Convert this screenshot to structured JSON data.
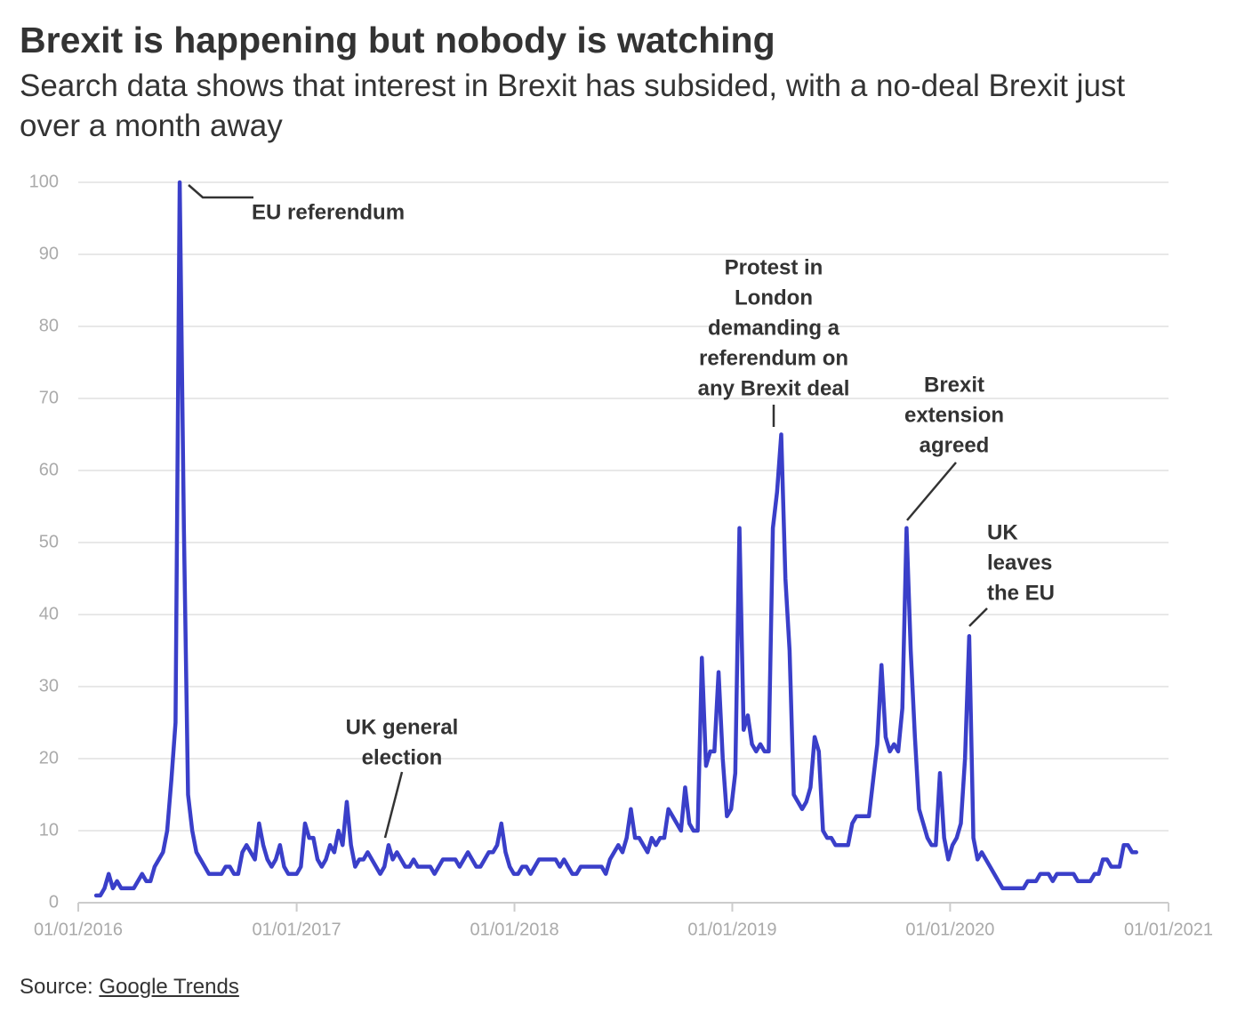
{
  "chart_data": {
    "type": "line",
    "title": "Brexit is happening but nobody is watching",
    "subtitle": "Search data shows that interest in Brexit has subsided, with a no-deal Brexit just over a month away",
    "source": {
      "label": "Source:",
      "link": "Google Trends"
    },
    "color": "#3a3fc9",
    "grid": true,
    "xlim": [
      "2016-01-01",
      "2021-01-01"
    ],
    "xticks": [
      {
        "value": "2016-01-01",
        "label": "01/01/2016"
      },
      {
        "value": "2017-01-01",
        "label": "01/01/2017"
      },
      {
        "value": "2018-01-01",
        "label": "01/01/2018"
      },
      {
        "value": "2019-01-01",
        "label": "01/01/2019"
      },
      {
        "value": "2020-01-01",
        "label": "01/01/2020"
      },
      {
        "value": "2021-01-01",
        "label": "01/01/2021"
      }
    ],
    "ylim": [
      0,
      100
    ],
    "yticks": [
      0,
      10,
      20,
      30,
      40,
      50,
      60,
      70,
      80,
      90,
      100
    ],
    "annotations": [
      {
        "lines": [
          "EU referendum"
        ]
      },
      {
        "lines": [
          "UK general",
          "election"
        ]
      },
      {
        "lines": [
          "Protest in",
          "London",
          "demanding a",
          "referendum on",
          "any Brexit deal"
        ]
      },
      {
        "lines": [
          "Brexit",
          "extension",
          "agreed"
        ]
      },
      {
        "lines": [
          "UK",
          "leaves",
          "the EU"
        ]
      }
    ],
    "x": [
      "2016-01-31",
      "2016-02-07",
      "2016-02-14",
      "2016-02-21",
      "2016-02-28",
      "2016-03-06",
      "2016-03-13",
      "2016-03-20",
      "2016-03-27",
      "2016-04-03",
      "2016-04-10",
      "2016-04-17",
      "2016-04-24",
      "2016-05-01",
      "2016-05-08",
      "2016-05-15",
      "2016-05-22",
      "2016-05-29",
      "2016-06-05",
      "2016-06-12",
      "2016-06-19",
      "2016-06-26",
      "2016-07-03",
      "2016-07-10",
      "2016-07-17",
      "2016-07-24",
      "2016-07-31",
      "2016-08-07",
      "2016-08-14",
      "2016-08-21",
      "2016-08-28",
      "2016-09-04",
      "2016-09-11",
      "2016-09-18",
      "2016-09-25",
      "2016-10-02",
      "2016-10-09",
      "2016-10-16",
      "2016-10-23",
      "2016-10-30",
      "2016-11-06",
      "2016-11-13",
      "2016-11-20",
      "2016-11-27",
      "2016-12-04",
      "2016-12-11",
      "2016-12-18",
      "2016-12-25",
      "2017-01-01",
      "2017-01-08",
      "2017-01-15",
      "2017-01-22",
      "2017-01-29",
      "2017-02-05",
      "2017-02-12",
      "2017-02-19",
      "2017-02-26",
      "2017-03-05",
      "2017-03-12",
      "2017-03-19",
      "2017-03-26",
      "2017-04-02",
      "2017-04-09",
      "2017-04-16",
      "2017-04-23",
      "2017-04-30",
      "2017-05-07",
      "2017-05-14",
      "2017-05-21",
      "2017-05-28",
      "2017-06-04",
      "2017-06-11",
      "2017-06-18",
      "2017-06-25",
      "2017-07-02",
      "2017-07-09",
      "2017-07-16",
      "2017-07-23",
      "2017-07-30",
      "2017-08-06",
      "2017-08-13",
      "2017-08-20",
      "2017-08-27",
      "2017-09-03",
      "2017-09-10",
      "2017-09-17",
      "2017-09-24",
      "2017-10-01",
      "2017-10-08",
      "2017-10-15",
      "2017-10-22",
      "2017-10-29",
      "2017-11-05",
      "2017-11-12",
      "2017-11-19",
      "2017-11-26",
      "2017-12-03",
      "2017-12-10",
      "2017-12-17",
      "2017-12-24",
      "2017-12-31",
      "2018-01-07",
      "2018-01-14",
      "2018-01-21",
      "2018-01-28",
      "2018-02-04",
      "2018-02-11",
      "2018-02-18",
      "2018-02-25",
      "2018-03-04",
      "2018-03-11",
      "2018-03-18",
      "2018-03-25",
      "2018-04-01",
      "2018-04-08",
      "2018-04-15",
      "2018-04-22",
      "2018-04-29",
      "2018-05-06",
      "2018-05-13",
      "2018-05-20",
      "2018-05-27",
      "2018-06-03",
      "2018-06-10",
      "2018-06-17",
      "2018-06-24",
      "2018-07-01",
      "2018-07-08",
      "2018-07-15",
      "2018-07-22",
      "2018-07-29",
      "2018-08-05",
      "2018-08-12",
      "2018-08-19",
      "2018-08-26",
      "2018-09-02",
      "2018-09-09",
      "2018-09-16",
      "2018-09-23",
      "2018-09-30",
      "2018-10-07",
      "2018-10-14",
      "2018-10-21",
      "2018-10-28",
      "2018-11-04",
      "2018-11-11",
      "2018-11-18",
      "2018-11-25",
      "2018-12-02",
      "2018-12-09",
      "2018-12-16",
      "2018-12-23",
      "2018-12-30",
      "2019-01-06",
      "2019-01-13",
      "2019-01-20",
      "2019-01-27",
      "2019-02-03",
      "2019-02-10",
      "2019-02-17",
      "2019-02-24",
      "2019-03-03",
      "2019-03-10",
      "2019-03-17",
      "2019-03-24",
      "2019-03-31",
      "2019-04-07",
      "2019-04-14",
      "2019-04-21",
      "2019-04-28",
      "2019-05-05",
      "2019-05-12",
      "2019-05-19",
      "2019-05-26",
      "2019-06-02",
      "2019-06-09",
      "2019-06-16",
      "2019-06-23",
      "2019-06-30",
      "2019-07-07",
      "2019-07-14",
      "2019-07-21",
      "2019-07-28",
      "2019-08-04",
      "2019-08-11",
      "2019-08-18",
      "2019-08-25",
      "2019-09-01",
      "2019-09-08",
      "2019-09-15",
      "2019-09-22",
      "2019-09-29",
      "2019-10-06",
      "2019-10-13",
      "2019-10-20",
      "2019-10-27",
      "2019-11-03",
      "2019-11-10",
      "2019-11-17",
      "2019-11-24",
      "2019-12-01",
      "2019-12-08",
      "2019-12-15",
      "2019-12-22",
      "2019-12-29",
      "2020-01-05",
      "2020-01-12",
      "2020-01-19",
      "2020-01-26",
      "2020-02-02",
      "2020-02-09",
      "2020-02-16",
      "2020-02-23",
      "2020-03-01",
      "2020-03-08",
      "2020-03-15",
      "2020-03-22",
      "2020-03-29",
      "2020-04-05",
      "2020-04-12",
      "2020-04-19",
      "2020-04-26",
      "2020-05-03",
      "2020-05-10",
      "2020-05-17",
      "2020-05-24",
      "2020-05-31",
      "2020-06-07",
      "2020-06-14",
      "2020-06-21",
      "2020-06-28",
      "2020-07-05",
      "2020-07-12",
      "2020-07-19",
      "2020-07-26",
      "2020-08-02",
      "2020-08-09",
      "2020-08-16",
      "2020-08-23",
      "2020-08-30",
      "2020-09-06",
      "2020-09-13",
      "2020-09-20",
      "2020-09-27",
      "2020-10-04",
      "2020-10-11",
      "2020-10-18",
      "2020-10-25",
      "2020-11-01",
      "2020-11-08"
    ],
    "values": [
      1,
      1,
      2,
      4,
      2,
      3,
      2,
      2,
      2,
      2,
      3,
      4,
      3,
      3,
      5,
      6,
      7,
      10,
      17,
      25,
      100,
      52,
      15,
      10,
      7,
      6,
      5,
      4,
      4,
      4,
      4,
      5,
      5,
      4,
      4,
      7,
      8,
      7,
      6,
      11,
      8,
      6,
      5,
      6,
      8,
      5,
      4,
      4,
      4,
      5,
      11,
      9,
      9,
      6,
      5,
      6,
      8,
      7,
      10,
      8,
      14,
      8,
      5,
      6,
      6,
      7,
      6,
      5,
      4,
      5,
      8,
      6,
      7,
      6,
      5,
      5,
      6,
      5,
      5,
      5,
      5,
      4,
      5,
      6,
      6,
      6,
      6,
      5,
      6,
      7,
      6,
      5,
      5,
      6,
      7,
      7,
      8,
      11,
      7,
      5,
      4,
      4,
      5,
      5,
      4,
      5,
      6,
      6,
      6,
      6,
      6,
      5,
      6,
      5,
      4,
      4,
      5,
      5,
      5,
      5,
      5,
      5,
      4,
      6,
      7,
      8,
      7,
      9,
      13,
      9,
      9,
      8,
      7,
      9,
      8,
      9,
      9,
      13,
      12,
      11,
      10,
      16,
      11,
      10,
      10,
      34,
      19,
      21,
      21,
      32,
      20,
      12,
      13,
      18,
      52,
      24,
      26,
      22,
      21,
      22,
      21,
      21,
      52,
      57,
      65,
      45,
      35,
      15,
      14,
      13,
      14,
      16,
      23,
      21,
      10,
      9,
      9,
      8,
      8,
      8,
      8,
      11,
      12,
      12,
      12,
      12,
      17,
      22,
      33,
      23,
      21,
      22,
      21,
      27,
      52,
      35,
      23,
      13,
      11,
      9,
      8,
      8,
      18,
      9,
      6,
      8,
      9,
      11,
      20,
      37,
      9,
      6,
      7,
      6,
      5,
      4,
      3,
      2,
      2,
      2,
      2,
      2,
      2,
      3,
      3,
      3,
      4,
      4,
      4,
      3,
      4,
      4,
      4,
      4,
      4,
      3,
      3,
      3,
      3,
      4,
      4,
      6,
      6,
      5,
      5,
      5,
      8,
      8,
      7,
      7
    ]
  }
}
